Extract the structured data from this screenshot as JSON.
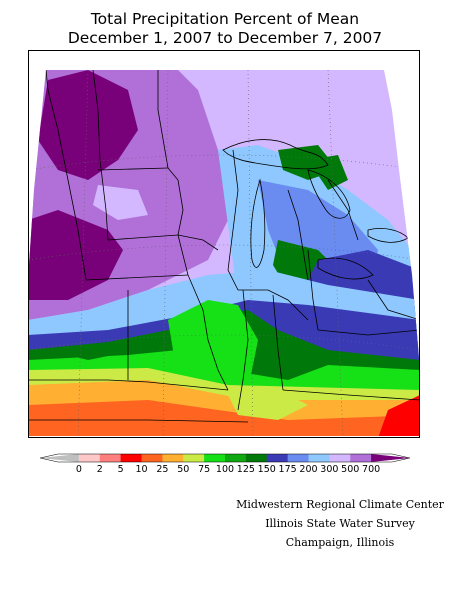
{
  "title": {
    "line1": "Total Precipitation Percent of Mean",
    "line2": "December 1, 2007 to December 7, 2007"
  },
  "legend": {
    "labels": [
      "0",
      "2",
      "5",
      "10",
      "25",
      "50",
      "75",
      "100",
      "125",
      "150",
      "175",
      "200",
      "300",
      "500",
      "700"
    ],
    "colors": [
      "#bfbfbf",
      "#ffc8c8",
      "#ff7f7f",
      "#ff0000",
      "#ff6420",
      "#ffaf32",
      "#ccea46",
      "#16e016",
      "#10a810",
      "#00780a",
      "#3a3ab4",
      "#6a8cf0",
      "#8ec8ff",
      "#d4b8ff",
      "#b070d8",
      "#780078"
    ]
  },
  "credits": {
    "line1": "Midwestern Regional Climate Center",
    "line2": "Illinois State Water Survey",
    "line3": "Champaign, Illinois"
  }
}
